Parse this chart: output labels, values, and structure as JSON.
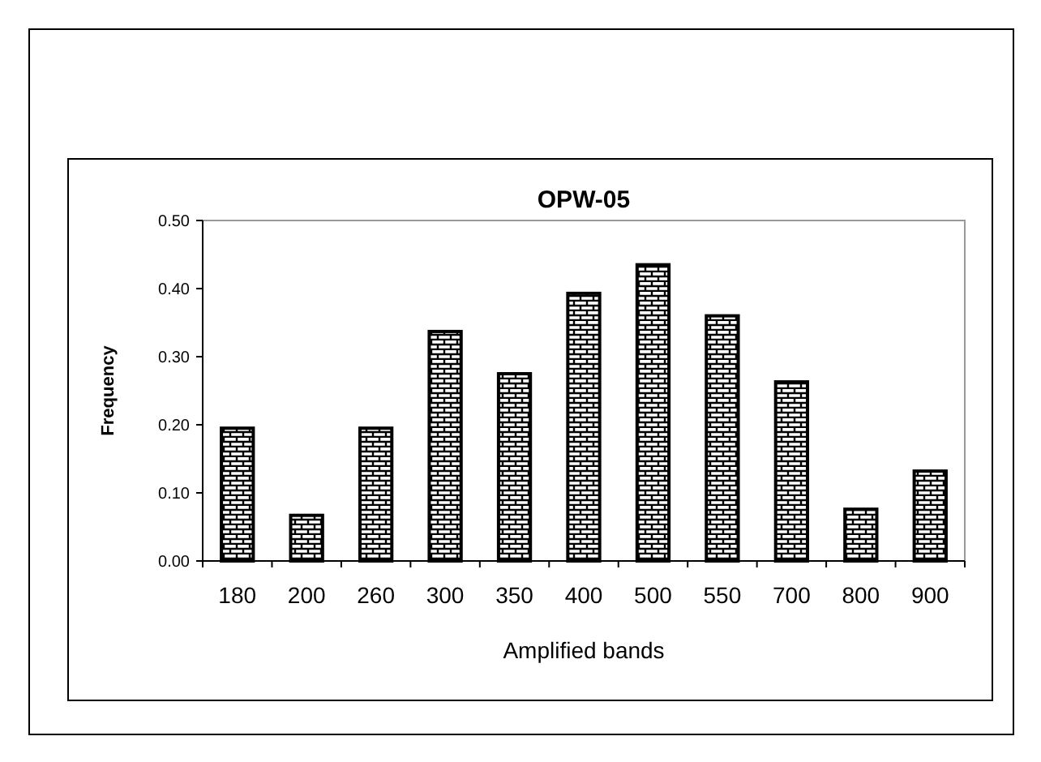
{
  "chart_data": {
    "type": "bar",
    "title": "OPW-05",
    "xlabel": "Amplified bands",
    "ylabel": "Frequency",
    "categories": [
      "180",
      "200",
      "260",
      "300",
      "350",
      "400",
      "500",
      "550",
      "700",
      "800",
      "900"
    ],
    "values": [
      0.195,
      0.067,
      0.195,
      0.337,
      0.275,
      0.393,
      0.435,
      0.36,
      0.263,
      0.076,
      0.132
    ],
    "color": "#000000",
    "ylim": [
      0,
      0.5
    ],
    "yticks": [
      {
        "value": 0,
        "label": "0.00"
      },
      {
        "value": 0.1,
        "label": "0.10"
      },
      {
        "value": 0.2,
        "label": "0.20"
      },
      {
        "value": 0.3,
        "label": "0.30"
      },
      {
        "value": 0.4,
        "label": "0.40"
      },
      {
        "value": 0.5,
        "label": "0.50"
      }
    ],
    "grid": false
  }
}
